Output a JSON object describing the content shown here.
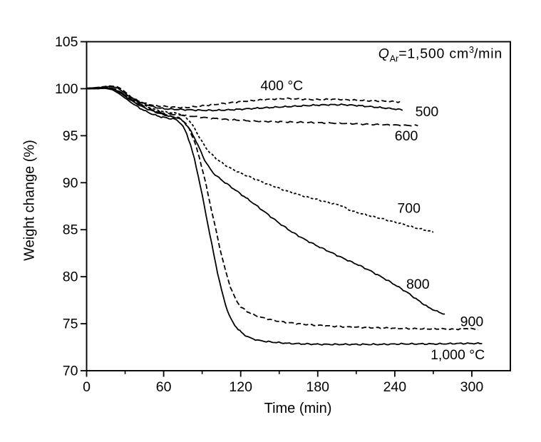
{
  "figure": {
    "background_color": "#ffffff",
    "ink_color": "#000000"
  },
  "chart_data": {
    "type": "line",
    "title": "",
    "xlabel": "Time (min)",
    "ylabel": "Weight change (%)",
    "xlim": [
      0,
      330
    ],
    "ylim": [
      70,
      105
    ],
    "x_major_ticks": [
      "0",
      "60",
      "120",
      "180",
      "240",
      "300"
    ],
    "x_major_tick_values": [
      0,
      60,
      120,
      180,
      240,
      300
    ],
    "x_minor_tick_values": [
      30,
      90,
      150,
      210,
      270
    ],
    "y_major_ticks": [
      "70",
      "75",
      "80",
      "85",
      "90",
      "95",
      "100",
      "105"
    ],
    "y_major_tick_values": [
      70,
      75,
      80,
      85,
      90,
      95,
      100,
      105
    ],
    "grid": false,
    "legend_position": "inline-curve-labels",
    "annotation": {
      "symbol": "Q",
      "subscript": "Ar",
      "value": "=1,500 cm",
      "superscript": "3",
      "unit": "/min"
    },
    "series": [
      {
        "name": "400C",
        "label": "400 °C",
        "temperature_c": 400,
        "line_style": "dashed",
        "label_anchor": [
          152,
          100.35
        ],
        "points": [
          [
            0,
            100.05
          ],
          [
            6,
            100.1
          ],
          [
            12,
            100.2
          ],
          [
            18,
            100.3
          ],
          [
            24,
            100.2
          ],
          [
            28,
            99.9
          ],
          [
            32,
            99.4
          ],
          [
            36,
            99.0
          ],
          [
            40,
            98.7
          ],
          [
            45,
            98.45
          ],
          [
            50,
            98.3
          ],
          [
            56,
            98.15
          ],
          [
            62,
            98.1
          ],
          [
            70,
            98.0
          ],
          [
            78,
            98.0
          ],
          [
            86,
            98.1
          ],
          [
            95,
            98.25
          ],
          [
            105,
            98.4
          ],
          [
            115,
            98.55
          ],
          [
            125,
            98.7
          ],
          [
            135,
            98.8
          ],
          [
            145,
            98.9
          ],
          [
            155,
            98.95
          ],
          [
            165,
            98.9
          ],
          [
            175,
            98.85
          ],
          [
            185,
            98.85
          ],
          [
            195,
            98.9
          ],
          [
            205,
            98.8
          ],
          [
            215,
            98.75
          ],
          [
            225,
            98.7
          ],
          [
            235,
            98.65
          ],
          [
            244,
            98.6
          ]
        ]
      },
      {
        "name": "500C",
        "label": "500",
        "temperature_c": 500,
        "line_style": "solid",
        "label_anchor": [
          265,
          97.55
        ],
        "points": [
          [
            0,
            100.05
          ],
          [
            6,
            100.1
          ],
          [
            12,
            100.15
          ],
          [
            18,
            100.25
          ],
          [
            24,
            100.1
          ],
          [
            28,
            99.7
          ],
          [
            32,
            99.3
          ],
          [
            36,
            98.95
          ],
          [
            40,
            98.65
          ],
          [
            45,
            98.4
          ],
          [
            50,
            98.15
          ],
          [
            56,
            97.95
          ],
          [
            62,
            97.85
          ],
          [
            70,
            97.8
          ],
          [
            80,
            97.75
          ],
          [
            90,
            97.7
          ],
          [
            100,
            97.7
          ],
          [
            112,
            97.75
          ],
          [
            124,
            97.85
          ],
          [
            136,
            97.95
          ],
          [
            150,
            98.05
          ],
          [
            164,
            98.15
          ],
          [
            178,
            98.25
          ],
          [
            190,
            98.3
          ],
          [
            200,
            98.3
          ],
          [
            212,
            98.2
          ],
          [
            224,
            98.05
          ],
          [
            236,
            97.9
          ],
          [
            246,
            97.75
          ]
        ]
      },
      {
        "name": "600C",
        "label": "600",
        "temperature_c": 600,
        "line_style": "long-dash",
        "label_anchor": [
          249,
          95.0
        ],
        "points": [
          [
            0,
            100.0
          ],
          [
            6,
            100.0
          ],
          [
            12,
            100.05
          ],
          [
            18,
            100.1
          ],
          [
            23,
            99.95
          ],
          [
            27,
            99.6
          ],
          [
            31,
            99.2
          ],
          [
            35,
            98.85
          ],
          [
            39,
            98.55
          ],
          [
            44,
            98.2
          ],
          [
            49,
            97.9
          ],
          [
            54,
            97.6
          ],
          [
            60,
            97.4
          ],
          [
            66,
            97.3
          ],
          [
            74,
            97.2
          ],
          [
            84,
            97.05
          ],
          [
            94,
            96.9
          ],
          [
            106,
            96.75
          ],
          [
            118,
            96.65
          ],
          [
            132,
            96.55
          ],
          [
            146,
            96.5
          ],
          [
            160,
            96.45
          ],
          [
            175,
            96.4
          ],
          [
            190,
            96.35
          ],
          [
            205,
            96.3
          ],
          [
            220,
            96.2
          ],
          [
            235,
            96.15
          ],
          [
            248,
            96.1
          ],
          [
            258,
            96.1
          ]
        ]
      },
      {
        "name": "700C",
        "label": "700",
        "temperature_c": 700,
        "line_style": "short-dash",
        "label_anchor": [
          251,
          87.3
        ],
        "points": [
          [
            0,
            100.0
          ],
          [
            8,
            100.05
          ],
          [
            16,
            100.1
          ],
          [
            22,
            99.95
          ],
          [
            27,
            99.6
          ],
          [
            32,
            99.15
          ],
          [
            37,
            98.75
          ],
          [
            42,
            98.4
          ],
          [
            48,
            98.05
          ],
          [
            54,
            97.75
          ],
          [
            60,
            97.55
          ],
          [
            66,
            97.45
          ],
          [
            72,
            97.35
          ],
          [
            76,
            97.1
          ],
          [
            80,
            96.6
          ],
          [
            84,
            95.8
          ],
          [
            88,
            94.8
          ],
          [
            92,
            93.9
          ],
          [
            96,
            93.2
          ],
          [
            101,
            92.55
          ],
          [
            107,
            91.95
          ],
          [
            114,
            91.4
          ],
          [
            122,
            90.9
          ],
          [
            131,
            90.4
          ],
          [
            141,
            89.85
          ],
          [
            151,
            89.35
          ],
          [
            161,
            88.9
          ],
          [
            171,
            88.5
          ],
          [
            181,
            88.15
          ],
          [
            191,
            87.8
          ],
          [
            199,
            87.55
          ],
          [
            203,
            87.2
          ],
          [
            209,
            86.9
          ],
          [
            217,
            86.6
          ],
          [
            226,
            86.3
          ],
          [
            236,
            85.95
          ],
          [
            246,
            85.6
          ],
          [
            256,
            85.2
          ],
          [
            264,
            84.95
          ],
          [
            270,
            84.75
          ]
        ]
      },
      {
        "name": "800C",
        "label": "800",
        "temperature_c": 800,
        "line_style": "solid",
        "label_anchor": [
          258,
          79.2
        ],
        "points": [
          [
            0,
            100.0
          ],
          [
            8,
            100.05
          ],
          [
            16,
            100.1
          ],
          [
            22,
            99.9
          ],
          [
            27,
            99.5
          ],
          [
            32,
            99.0
          ],
          [
            37,
            98.55
          ],
          [
            43,
            98.1
          ],
          [
            49,
            97.75
          ],
          [
            55,
            97.45
          ],
          [
            61,
            97.2
          ],
          [
            67,
            97.0
          ],
          [
            72,
            96.85
          ],
          [
            76,
            96.45
          ],
          [
            80,
            95.75
          ],
          [
            84,
            94.8
          ],
          [
            88,
            93.6
          ],
          [
            92,
            92.4
          ],
          [
            96,
            91.5
          ],
          [
            100,
            90.85
          ],
          [
            106,
            90.2
          ],
          [
            113,
            89.5
          ],
          [
            121,
            88.7
          ],
          [
            130,
            87.8
          ],
          [
            140,
            86.75
          ],
          [
            150,
            85.7
          ],
          [
            160,
            84.75
          ],
          [
            170,
            83.95
          ],
          [
            180,
            83.25
          ],
          [
            190,
            82.6
          ],
          [
            200,
            81.95
          ],
          [
            210,
            81.35
          ],
          [
            220,
            80.7
          ],
          [
            230,
            79.95
          ],
          [
            240,
            79.15
          ],
          [
            250,
            78.3
          ],
          [
            258,
            77.5
          ],
          [
            266,
            76.75
          ],
          [
            273,
            76.3
          ],
          [
            279,
            76.0
          ]
        ]
      },
      {
        "name": "900C",
        "label": "900",
        "temperature_c": 900,
        "line_style": "dashed",
        "label_anchor": [
          300,
          75.25
        ],
        "points": [
          [
            0,
            100.0
          ],
          [
            8,
            100.0
          ],
          [
            16,
            100.05
          ],
          [
            22,
            99.9
          ],
          [
            27,
            99.5
          ],
          [
            32,
            99.05
          ],
          [
            37,
            98.6
          ],
          [
            43,
            98.15
          ],
          [
            49,
            97.8
          ],
          [
            55,
            97.5
          ],
          [
            61,
            97.25
          ],
          [
            67,
            97.05
          ],
          [
            72,
            96.9
          ],
          [
            76,
            96.5
          ],
          [
            80,
            95.7
          ],
          [
            84,
            94.4
          ],
          [
            88,
            92.6
          ],
          [
            92,
            90.4
          ],
          [
            96,
            87.9
          ],
          [
            100,
            85.4
          ],
          [
            104,
            82.9
          ],
          [
            108,
            80.7
          ],
          [
            112,
            78.9
          ],
          [
            116,
            77.6
          ],
          [
            120,
            76.8
          ],
          [
            125,
            76.3
          ],
          [
            131,
            75.9
          ],
          [
            138,
            75.6
          ],
          [
            146,
            75.35
          ],
          [
            155,
            75.15
          ],
          [
            165,
            75.0
          ],
          [
            177,
            74.85
          ],
          [
            190,
            74.75
          ],
          [
            204,
            74.65
          ],
          [
            218,
            74.6
          ],
          [
            232,
            74.55
          ],
          [
            246,
            74.5
          ],
          [
            260,
            74.45
          ],
          [
            274,
            74.45
          ],
          [
            286,
            74.4
          ],
          [
            296,
            74.5
          ],
          [
            305,
            74.4
          ]
        ]
      },
      {
        "name": "1000C",
        "label": "1,000 °C",
        "temperature_c": 1000,
        "line_style": "solid",
        "label_anchor": [
          289,
          71.7
        ],
        "points": [
          [
            0,
            100.0
          ],
          [
            8,
            100.0
          ],
          [
            14,
            100.05
          ],
          [
            20,
            99.9
          ],
          [
            25,
            99.5
          ],
          [
            30,
            99.0
          ],
          [
            35,
            98.5
          ],
          [
            40,
            98.05
          ],
          [
            46,
            97.6
          ],
          [
            52,
            97.25
          ],
          [
            58,
            97.0
          ],
          [
            64,
            96.85
          ],
          [
            69,
            96.75
          ],
          [
            72,
            96.5
          ],
          [
            75,
            96.0
          ],
          [
            78,
            95.2
          ],
          [
            81,
            94.0
          ],
          [
            84,
            92.5
          ],
          [
            87,
            90.7
          ],
          [
            90,
            88.7
          ],
          [
            93,
            86.6
          ],
          [
            96,
            84.5
          ],
          [
            99,
            82.4
          ],
          [
            102,
            80.4
          ],
          [
            105,
            78.6
          ],
          [
            108,
            77.1
          ],
          [
            111,
            75.9
          ],
          [
            114,
            75.1
          ],
          [
            118,
            74.4
          ],
          [
            122,
            73.9
          ],
          [
            127,
            73.5
          ],
          [
            133,
            73.25
          ],
          [
            140,
            73.1
          ],
          [
            148,
            73.0
          ],
          [
            158,
            72.9
          ],
          [
            170,
            72.85
          ],
          [
            185,
            72.8
          ],
          [
            200,
            72.8
          ],
          [
            215,
            72.8
          ],
          [
            230,
            72.8
          ],
          [
            245,
            72.85
          ],
          [
            260,
            72.85
          ],
          [
            275,
            72.85
          ],
          [
            290,
            72.9
          ],
          [
            300,
            72.9
          ],
          [
            308,
            72.9
          ]
        ]
      }
    ]
  }
}
